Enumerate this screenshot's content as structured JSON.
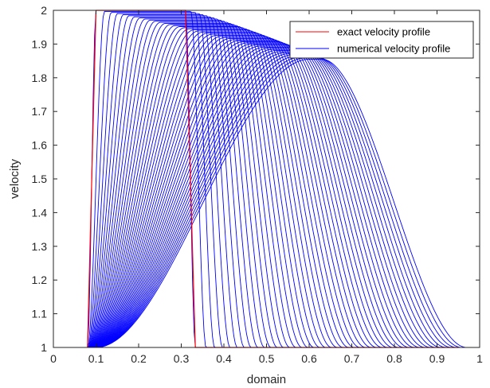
{
  "chart_data": {
    "type": "line",
    "xlabel": "domain",
    "ylabel": "velocity",
    "xlim": [
      0,
      1
    ],
    "ylim": [
      1,
      2
    ],
    "xticks": [
      "0",
      "0.1",
      "0.2",
      "0.3",
      "0.4",
      "0.5",
      "0.6",
      "0.7",
      "0.8",
      "0.9",
      "1"
    ],
    "yticks": [
      "1",
      "1.1",
      "1.2",
      "1.3",
      "1.4",
      "1.5",
      "1.6",
      "1.7",
      "1.8",
      "1.9",
      "2"
    ],
    "grid": false,
    "legend_position": "top-right",
    "colors": {
      "exact": "#ff0000",
      "numerical": "#0000ff",
      "axis": "#262626"
    },
    "series": [
      {
        "name": "exact velocity profile",
        "color": "#ff0000",
        "x": [
          0.08,
          0.1,
          0.31,
          0.333,
          0.95
        ],
        "y": [
          1,
          2,
          2,
          1,
          1
        ]
      },
      {
        "name": "numerical velocity profile",
        "color": "#0000ff",
        "family": {
          "count": 46,
          "rise_start_first": 0.08,
          "rise_start_last": 0.1,
          "rise_end_first": 0.1,
          "rise_end_last": 0.6,
          "peak_first": 2.0,
          "peak_last": 1.855,
          "fall_start_first": 0.31,
          "fall_start_last": 0.63,
          "fall_end_first": 0.333,
          "fall_end_last": 0.97
        }
      }
    ]
  }
}
